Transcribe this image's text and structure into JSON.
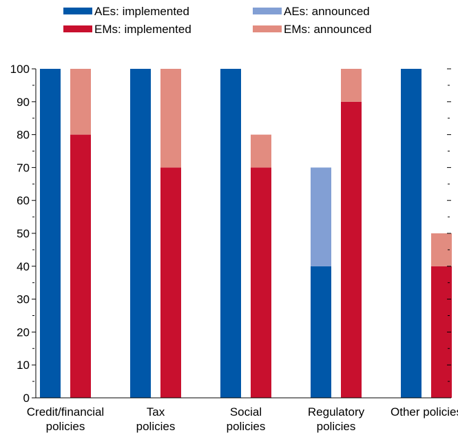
{
  "chart_data": {
    "type": "bar",
    "stacked_pairs": true,
    "categories": [
      [
        "Credit/financial",
        "policies"
      ],
      [
        "Tax",
        "policies"
      ],
      [
        "Social",
        "policies"
      ],
      [
        "Regulatory",
        "policies"
      ],
      [
        "Other policies"
      ]
    ],
    "series": [
      {
        "name": "AEs: implemented",
        "group": "AEs",
        "values": [
          100,
          100,
          100,
          40,
          100
        ],
        "color": "#0057A8"
      },
      {
        "name": "AEs: announced",
        "group": "AEs",
        "values": [
          0,
          0,
          0,
          30,
          0
        ],
        "color": "#829FD4"
      },
      {
        "name": "EMs: implemented",
        "group": "EMs",
        "values": [
          80,
          70,
          70,
          90,
          40
        ],
        "color": "#C8102E"
      },
      {
        "name": "EMs: announced",
        "group": "EMs",
        "values": [
          20,
          30,
          10,
          10,
          10
        ],
        "color": "#E28C80"
      }
    ],
    "legend_order": [
      "AEs: implemented",
      "AEs: announced",
      "EMs: implemented",
      "EMs: announced"
    ],
    "legend_placement": "top",
    "ylim": [
      0,
      100
    ],
    "yticks": [
      0,
      10,
      20,
      30,
      40,
      50,
      60,
      70,
      80,
      90,
      100
    ],
    "grid": false,
    "title": "",
    "xlabel": "",
    "ylabel": ""
  }
}
